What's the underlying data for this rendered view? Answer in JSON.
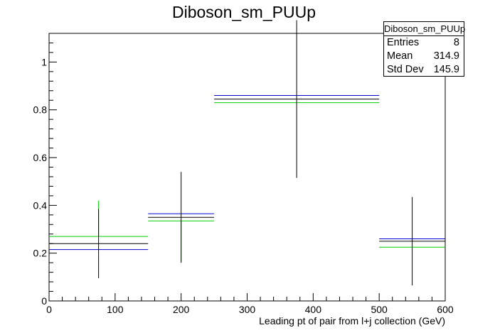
{
  "chart_data": {
    "type": "histogram",
    "title": "Diboson_sm_PUUp",
    "xlabel": "Leading pt of pair from l+j collection (GeV)",
    "ylabel": "",
    "xlim": [
      0,
      600
    ],
    "ylim": [
      0,
      1.12
    ],
    "x_ticks": [
      0,
      100,
      200,
      300,
      400,
      500,
      600
    ],
    "y_ticks": [
      0,
      0.2,
      0.4,
      0.6,
      0.8,
      1
    ],
    "x_tick_labels": [
      "0",
      "100",
      "200",
      "300",
      "400",
      "500",
      "600"
    ],
    "y_tick_labels": [
      "0",
      "0.2",
      "0.4",
      "0.6",
      "0.8",
      "1"
    ],
    "bin_edges": [
      0,
      150,
      250,
      500,
      600
    ],
    "series": [
      {
        "color": "#000000",
        "values": [
          0.24,
          0.35,
          0.845,
          0.25
        ],
        "errors": [
          0.145,
          0.19,
          0.33,
          0.185
        ]
      },
      {
        "color": "#0000cc",
        "values": [
          0.215,
          0.365,
          0.86,
          0.26
        ]
      },
      {
        "color": "#00cc00",
        "values": [
          0.27,
          0.335,
          0.83,
          0.225
        ],
        "error_bar_tops": [
          0.42,
          null,
          null,
          null
        ],
        "error_bar_bottoms": [
          null,
          0.165,
          null,
          null
        ]
      }
    ],
    "stats": {
      "title": "Diboson_sm_PUUp",
      "rows": [
        {
          "label": "Entries",
          "value": "8"
        },
        {
          "label": "Mean",
          "value": "314.9"
        },
        {
          "label": "Std Dev",
          "value": "145.9"
        }
      ]
    }
  }
}
